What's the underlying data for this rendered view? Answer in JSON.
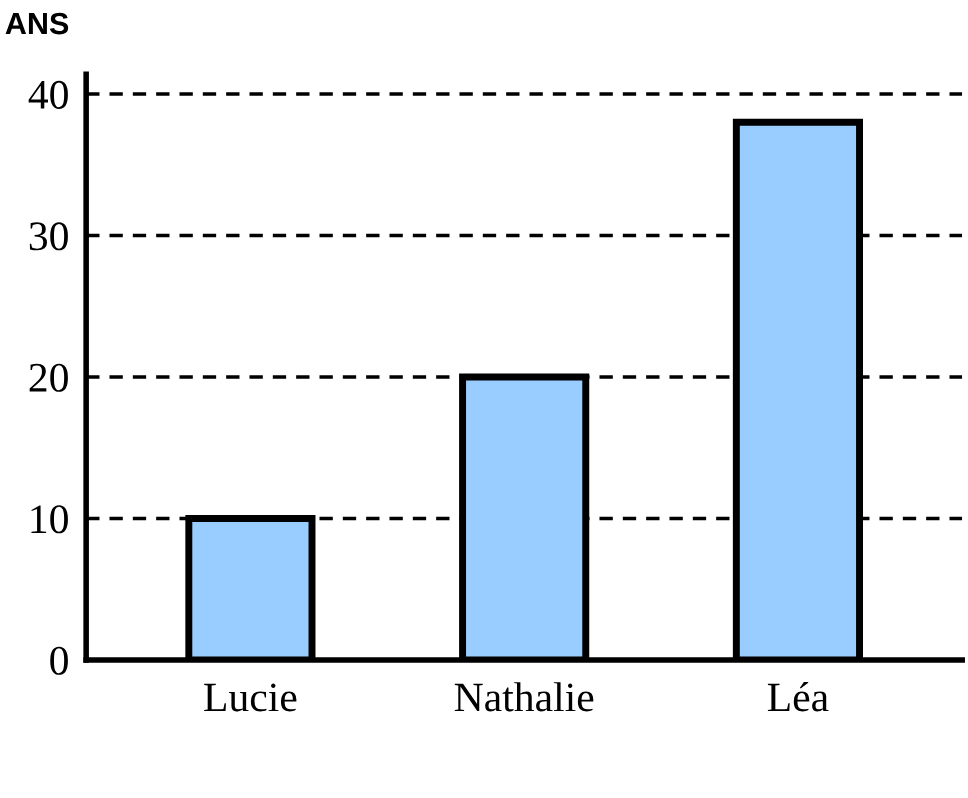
{
  "chart_data": {
    "type": "bar",
    "ylabel": "ANS",
    "categories": [
      "Lucie",
      "Nathalie",
      "Léa"
    ],
    "series": [
      {
        "color": "#99ccff",
        "values": [
          10,
          20,
          38
        ]
      }
    ],
    "ylim": [
      0,
      41.4
    ],
    "yticks": [
      0,
      10,
      20,
      30,
      40
    ],
    "grid": "y",
    "line_style": "dashed"
  }
}
